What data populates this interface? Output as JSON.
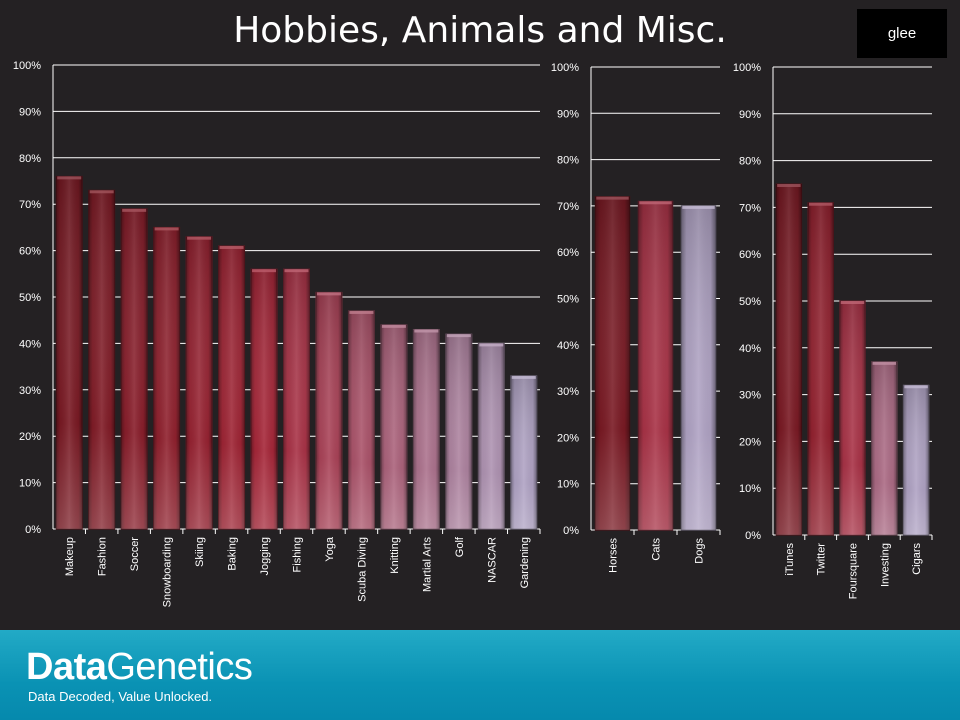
{
  "header": {
    "title": "Hobbies, Animals and Misc."
  },
  "logo": {
    "label": "glee"
  },
  "footer": {
    "brand_bold": "Data",
    "brand_regular": "Genetics",
    "tagline": "Data Decoded, Value Unlocked."
  },
  "colors": {
    "background": "#242123",
    "bar_dark_red": "#7a1a24",
    "bar_red": "#a8283a",
    "bar_lavender": "#b0a3c4",
    "footer_teal": "#0a92b4"
  },
  "chart_data": [
    {
      "type": "bar",
      "ylim": [
        0,
        100
      ],
      "yticks": [
        "0%",
        "10%",
        "20%",
        "30%",
        "40%",
        "50%",
        "60%",
        "70%",
        "80%",
        "90%",
        "100%"
      ],
      "grid": true,
      "categories": [
        "Makeup",
        "Fashion",
        "Soccer",
        "Snowboarding",
        "Skiing",
        "Baking",
        "Jogging",
        "Fishing",
        "Yoga",
        "Scuba Diving",
        "Knitting",
        "Martial Arts",
        "Golf",
        "NASCAR",
        "Gardening"
      ],
      "values": [
        76,
        73,
        69,
        65,
        63,
        61,
        56,
        56,
        51,
        47,
        44,
        43,
        42,
        40,
        33
      ]
    },
    {
      "type": "bar",
      "ylim": [
        0,
        100
      ],
      "yticks": [
        "0%",
        "10%",
        "20%",
        "30%",
        "40%",
        "50%",
        "60%",
        "70%",
        "80%",
        "90%",
        "100%"
      ],
      "grid": true,
      "categories": [
        "Horses",
        "Cats",
        "Dogs"
      ],
      "values": [
        72,
        71,
        70
      ]
    },
    {
      "type": "bar",
      "ylim": [
        0,
        100
      ],
      "yticks": [
        "0%",
        "10%",
        "20%",
        "30%",
        "40%",
        "50%",
        "60%",
        "70%",
        "80%",
        "90%",
        "100%"
      ],
      "grid": true,
      "categories": [
        "iTunes",
        "Twitter",
        "Foursquare",
        "Investing",
        "Cigars"
      ],
      "values": [
        75,
        71,
        50,
        37,
        32
      ]
    }
  ]
}
